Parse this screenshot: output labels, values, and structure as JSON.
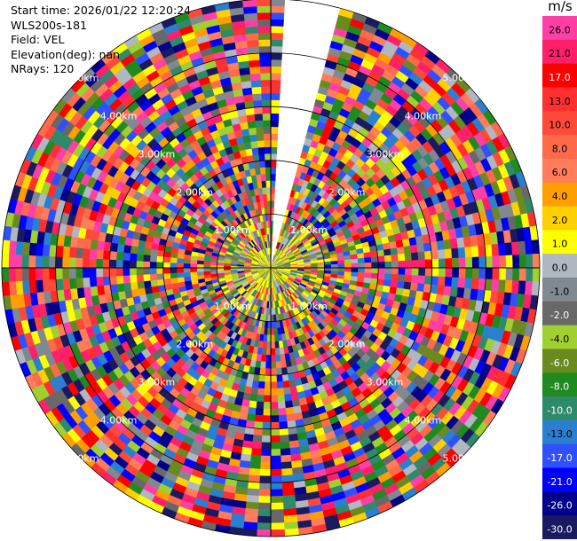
{
  "info": {
    "start_time": "Start time: 2026/01/22 12:20:24",
    "site": "WLS200s-181",
    "field": "Field: VEL",
    "elevation": "Elevation(deg): nan",
    "nrays": "NRays: 120"
  },
  "colorbar": {
    "unit": "m/s",
    "ticks": [
      "26.0",
      "21.0",
      "17.0",
      "13.0",
      "10.0",
      "8.0",
      "6.0",
      "4.0",
      "2.0",
      "1.0",
      "0.0",
      "-1.0",
      "-2.0",
      "-4.0",
      "-6.0",
      "-8.0",
      "-10.0",
      "-13.0",
      "-17.0",
      "-21.0",
      "-26.0",
      "-30.0"
    ],
    "colors": [
      "#ff3fa6",
      "#ff1f6a",
      "#ff0000",
      "#ff3030",
      "#ff4a3a",
      "#ff6a4a",
      "#ff7d5a",
      "#ff9e00",
      "#ffd000",
      "#ffff00",
      "#b0b7c0",
      "#808890",
      "#686868",
      "#a0d030",
      "#6a8a20",
      "#208a20",
      "#2e8a6a",
      "#2a7fd0",
      "#3050ff",
      "#0000ff",
      "#00008a",
      "#1a1a60"
    ]
  },
  "chart_data": {
    "type": "ppi",
    "title": "",
    "field": "VEL",
    "units": "m/s",
    "n_rays": 120,
    "max_range_km": 5.0,
    "range_rings_km": [
      1.0,
      2.0,
      3.0,
      4.0,
      5.0
    ],
    "range_labels": [
      "1.00km",
      "2.00km",
      "3.00km",
      "4.00km",
      "5.00km"
    ],
    "color_levels": [
      26.0,
      21.0,
      17.0,
      13.0,
      10.0,
      8.0,
      6.0,
      4.0,
      2.0,
      1.0,
      0.0,
      -1.0,
      -2.0,
      -4.0,
      -6.0,
      -8.0,
      -10.0,
      -13.0,
      -17.0,
      -21.0,
      -26.0,
      -30.0
    ],
    "vmin": -30.0,
    "vmax": 30.0,
    "missing_sector_azimuth_deg": [
      3,
      15
    ],
    "near_range_weak_velocity_km": 0.7,
    "grid": true
  }
}
